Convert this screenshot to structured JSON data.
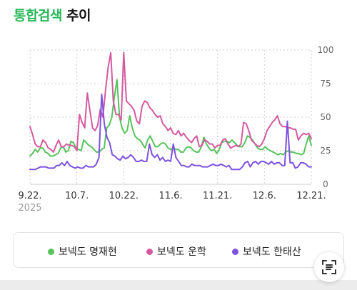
{
  "header": {
    "title_accent": "통합검색",
    "title_rest": "추이"
  },
  "colors": {
    "title_accent": "#2bb85a",
    "grid": "#cfcfcf",
    "axis_text": "#666666"
  },
  "chart_data": {
    "type": "line",
    "title": "통합검색 추이",
    "xlabel": "",
    "ylabel": "",
    "ylim": [
      0,
      100
    ],
    "yticks": [
      0,
      25,
      50,
      75,
      100
    ],
    "ytick_position": "right",
    "grid": true,
    "grid_style": "dashed",
    "legend_position": "bottom",
    "xtick_labels": [
      "9.22.",
      "10.7.",
      "10.22.",
      "11.6.",
      "11.21.",
      "12.6.",
      "12.21."
    ],
    "xtick_sub": "2025",
    "series": [
      {
        "name": "보넥도 명재현",
        "color": "#56c35b",
        "values": [
          21,
          23,
          26,
          24,
          27,
          27,
          24,
          23,
          21,
          21,
          22,
          23,
          27,
          28,
          24,
          25,
          32,
          31,
          27,
          26,
          25,
          33,
          31,
          29,
          28,
          26,
          24,
          24,
          26,
          27,
          42,
          44,
          50,
          65,
          78,
          50,
          42,
          38,
          40,
          51,
          42,
          36,
          34,
          33,
          30,
          27,
          33,
          36,
          32,
          28,
          28,
          30,
          31,
          30,
          27,
          26,
          27,
          26,
          26,
          24,
          24,
          27,
          28,
          27,
          25,
          24,
          24,
          28,
          35,
          30,
          27,
          25,
          26,
          23,
          26,
          31,
          32,
          32,
          31,
          33,
          31,
          29,
          28,
          28,
          31,
          36,
          35,
          33,
          30,
          27,
          26,
          26,
          28,
          26,
          25,
          24,
          23,
          22,
          23,
          22,
          24,
          25,
          24,
          24,
          23,
          23,
          22,
          23,
          30,
          36,
          29
        ]
      },
      {
        "name": "보넥도 운학",
        "color": "#d45aa0",
        "values": [
          43,
          37,
          30,
          28,
          28,
          33,
          31,
          27,
          26,
          24,
          29,
          33,
          28,
          28,
          30,
          29,
          29,
          28,
          25,
          52,
          46,
          42,
          68,
          55,
          42,
          40,
          44,
          56,
          50,
          70,
          87,
          98,
          62,
          52,
          52,
          48,
          98,
          62,
          60,
          58,
          55,
          47,
          45,
          58,
          62,
          61,
          57,
          55,
          52,
          50,
          51,
          45,
          43,
          40,
          42,
          38,
          37,
          40,
          36,
          38,
          35,
          33,
          31,
          34,
          36,
          28,
          29,
          33,
          32,
          30,
          30,
          27,
          29,
          29,
          33,
          34,
          30,
          27,
          28,
          29,
          28,
          30,
          46,
          45,
          40,
          33,
          31,
          29,
          28,
          30,
          34,
          40,
          43,
          46,
          48,
          51,
          45,
          43,
          43,
          42,
          42,
          41,
          41,
          33,
          36,
          38,
          37,
          38,
          34
        ]
      },
      {
        "name": "보넥도 한태산",
        "color": "#7d52e0",
        "values": [
          11,
          11,
          11,
          12,
          13,
          13,
          13,
          12,
          12,
          12,
          14,
          14,
          16,
          14,
          17,
          14,
          13,
          12,
          13,
          12,
          12,
          14,
          13,
          13,
          13,
          15,
          20,
          67,
          45,
          35,
          31,
          22,
          21,
          19,
          18,
          21,
          19,
          20,
          22,
          20,
          17,
          17,
          18,
          17,
          17,
          30,
          22,
          20,
          22,
          18,
          20,
          17,
          18,
          17,
          30,
          20,
          17,
          14,
          14,
          13,
          13,
          15,
          14,
          14,
          14,
          13,
          13,
          13,
          14,
          15,
          14,
          14,
          15,
          14,
          13,
          14,
          11,
          11,
          11,
          11,
          13,
          16,
          17,
          13,
          16,
          17,
          15,
          17,
          17,
          16,
          15,
          17,
          15,
          16,
          16,
          14,
          14,
          47,
          16,
          16,
          12,
          13,
          16,
          16,
          15,
          13,
          13
        ]
      }
    ]
  },
  "legend": {
    "items": [
      {
        "label": "보넥도 명재현",
        "color": "#56c35b"
      },
      {
        "label": "보넥도 운학",
        "color": "#d45aa0"
      },
      {
        "label": "보넥도 한태산",
        "color": "#7d52e0"
      }
    ]
  },
  "scan_button": {
    "icon": "scan-text-icon"
  }
}
